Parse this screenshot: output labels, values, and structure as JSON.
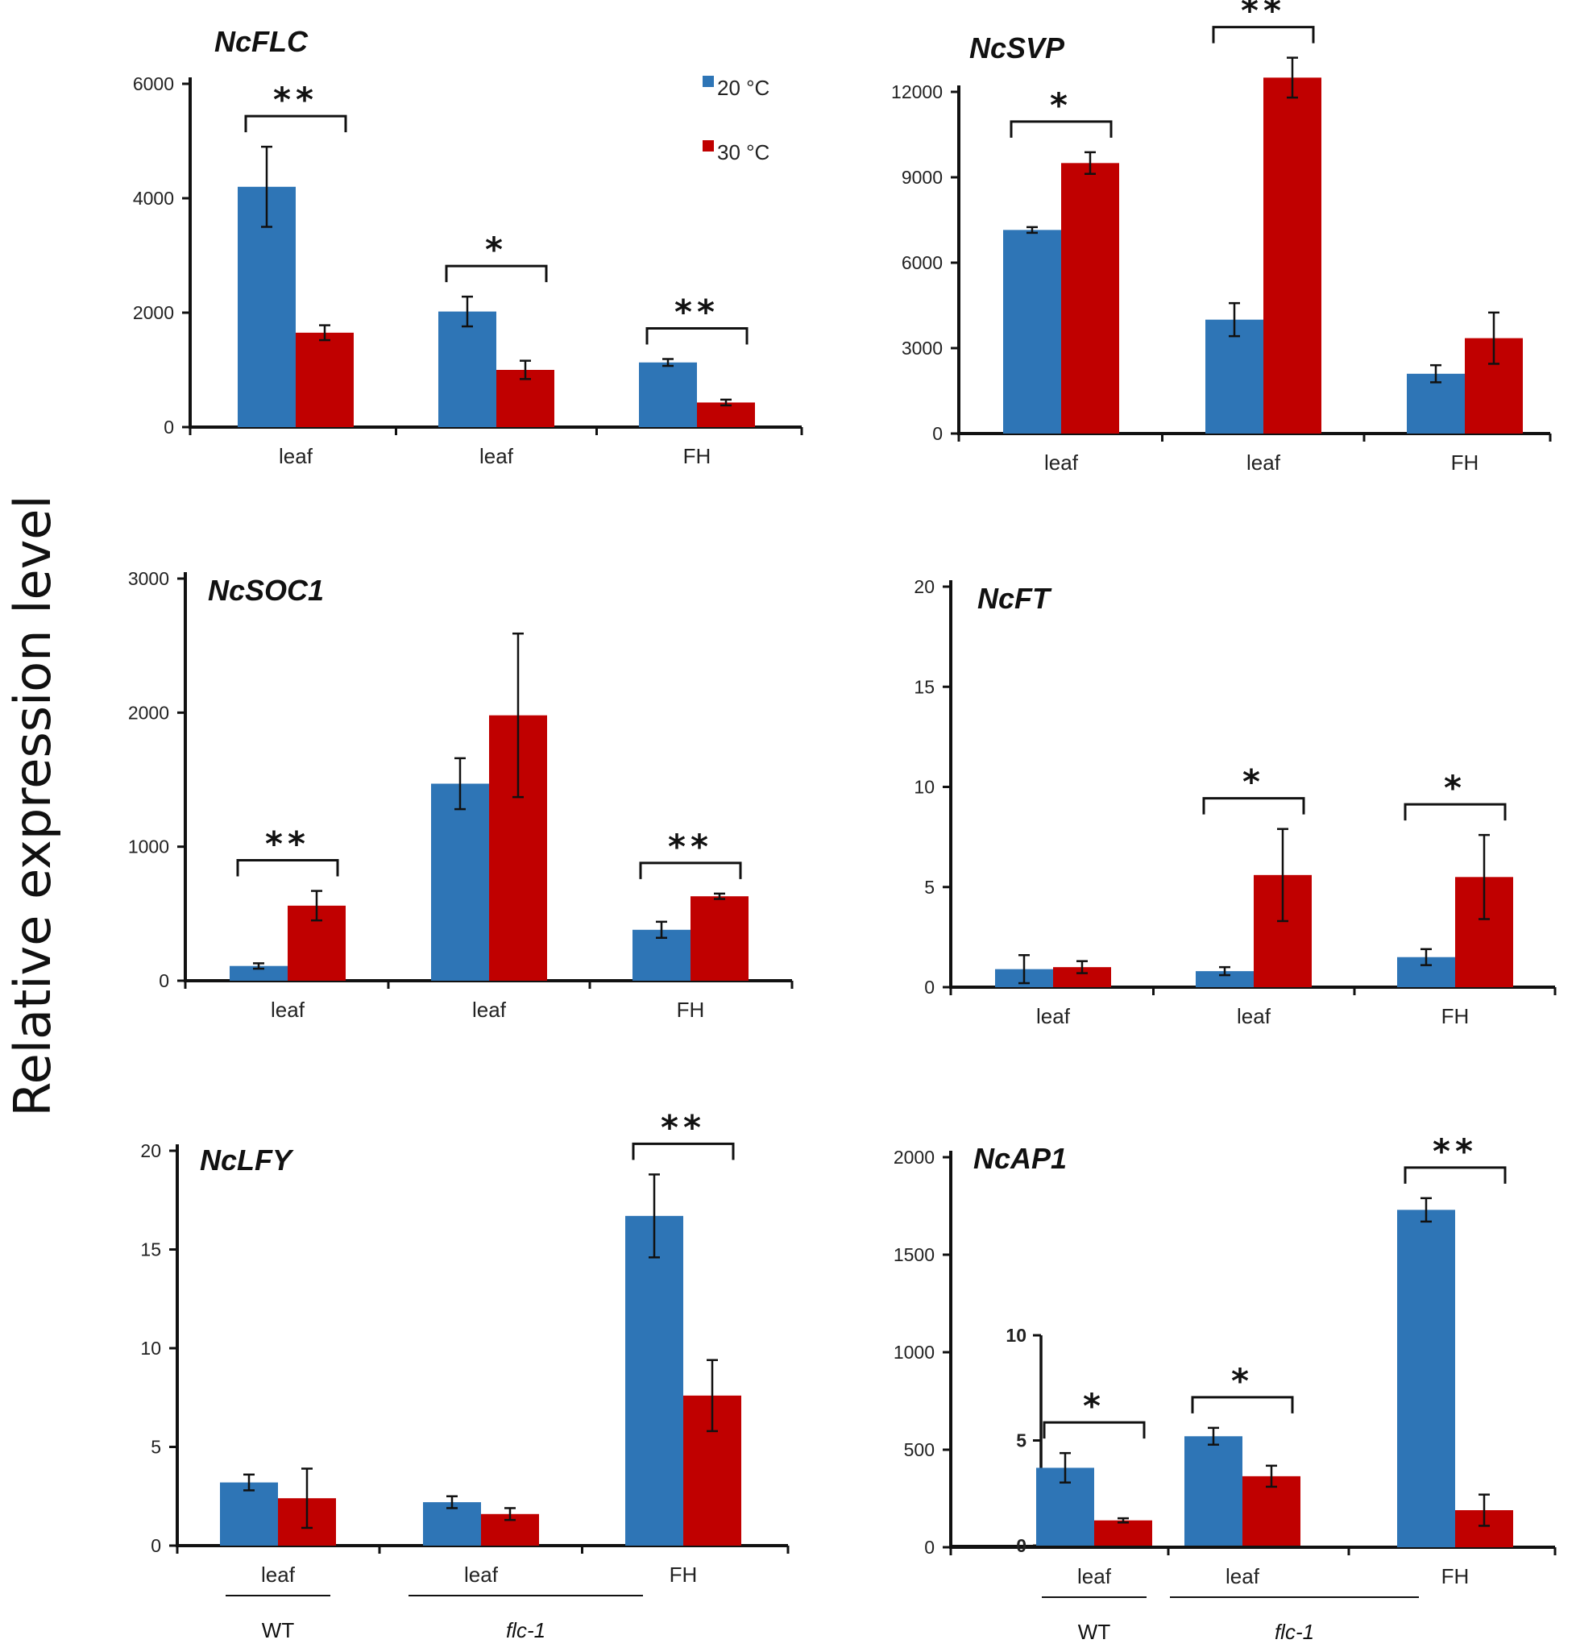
{
  "y_axis_label": "Relative expression level",
  "legend": [
    {
      "label": "20 °C",
      "color": "#2e75b6"
    },
    {
      "label": "30 °C",
      "color": "#c00000"
    }
  ],
  "colors": {
    "series_20": "#2e75b6",
    "series_30": "#c00000",
    "axis": "#111111"
  },
  "groups": [
    {
      "label": "WT",
      "italic": false
    },
    {
      "label": "flc-1",
      "italic": true
    }
  ],
  "chart_data": [
    {
      "type": "bar",
      "title": "NcFLC",
      "categories": [
        "leaf",
        "leaf",
        "FH"
      ],
      "ylim": [
        0,
        6000
      ],
      "yticks": [
        0,
        2000,
        4000,
        6000
      ],
      "series": [
        {
          "name": "20 °C",
          "values": [
            4200,
            2020,
            1130
          ],
          "errors": [
            700,
            260,
            60
          ]
        },
        {
          "name": "30 °C",
          "values": [
            1650,
            1000,
            430
          ],
          "errors": [
            130,
            160,
            50
          ]
        }
      ],
      "significance": [
        {
          "category": 0,
          "label": "**"
        },
        {
          "category": 1,
          "label": "*"
        },
        {
          "category": 2,
          "label": "**"
        }
      ]
    },
    {
      "type": "bar",
      "title": "NcSVP",
      "categories": [
        "leaf",
        "leaf",
        "FH"
      ],
      "ylim": [
        0,
        12000
      ],
      "yticks": [
        0,
        3000,
        6000,
        9000,
        12000
      ],
      "series": [
        {
          "name": "20 °C",
          "values": [
            7150,
            4000,
            2100
          ],
          "errors": [
            100,
            580,
            300
          ]
        },
        {
          "name": "30 °C",
          "values": [
            9500,
            12500,
            3350
          ],
          "errors": [
            380,
            700,
            900
          ]
        }
      ],
      "significance": [
        {
          "category": 0,
          "label": "*"
        },
        {
          "category": 1,
          "label": "**"
        }
      ]
    },
    {
      "type": "bar",
      "title": "NcSOC1",
      "categories": [
        "leaf",
        "leaf",
        "FH"
      ],
      "ylim": [
        0,
        3000
      ],
      "yticks": [
        0,
        1000,
        2000,
        3000
      ],
      "series": [
        {
          "name": "20 °C",
          "values": [
            110,
            1470,
            380
          ],
          "errors": [
            20,
            190,
            60
          ]
        },
        {
          "name": "30 °C",
          "values": [
            560,
            1980,
            630
          ],
          "errors": [
            110,
            610,
            20
          ]
        }
      ],
      "significance": [
        {
          "category": 0,
          "label": "**"
        },
        {
          "category": 2,
          "label": "**"
        }
      ]
    },
    {
      "type": "bar",
      "title": "NcFT",
      "categories": [
        "leaf",
        "leaf",
        "FH"
      ],
      "ylim": [
        0,
        20
      ],
      "yticks": [
        0,
        5,
        10,
        15,
        20
      ],
      "series": [
        {
          "name": "20 °C",
          "values": [
            0.9,
            0.8,
            1.5
          ],
          "errors": [
            0.7,
            0.2,
            0.4
          ]
        },
        {
          "name": "30 °C",
          "values": [
            1.0,
            5.6,
            5.5
          ],
          "errors": [
            0.3,
            2.3,
            2.1
          ]
        }
      ],
      "significance": [
        {
          "category": 1,
          "label": "*"
        },
        {
          "category": 2,
          "label": "*"
        }
      ]
    },
    {
      "type": "bar",
      "title": "NcLFY",
      "categories": [
        "leaf",
        "leaf",
        "FH"
      ],
      "ylim": [
        0,
        20
      ],
      "yticks": [
        0,
        5,
        10,
        15,
        20
      ],
      "groups": [
        {
          "label": "WT",
          "categories": [
            0
          ]
        },
        {
          "label": "flc-1",
          "categories": [
            1,
            2
          ]
        }
      ],
      "series": [
        {
          "name": "20 °C",
          "values": [
            3.2,
            2.2,
            16.7
          ],
          "errors": [
            0.4,
            0.3,
            2.1
          ]
        },
        {
          "name": "30 °C",
          "values": [
            2.4,
            1.6,
            7.6
          ],
          "errors": [
            1.5,
            0.3,
            1.8
          ]
        }
      ],
      "significance": [
        {
          "category": 2,
          "label": "**"
        }
      ]
    },
    {
      "type": "bar",
      "title": "NcAP1",
      "categories": [
        "leaf",
        "leaf",
        "FH"
      ],
      "ylim": [
        0,
        2000
      ],
      "yticks": [
        0,
        500,
        1000,
        1500,
        2000
      ],
      "inset_axis": {
        "ylim": [
          0,
          10
        ],
        "yticks": [
          0,
          5,
          10
        ],
        "applies_to": [
          0,
          1
        ]
      },
      "groups": [
        {
          "label": "WT",
          "categories": [
            0
          ]
        },
        {
          "label": "flc-1",
          "categories": [
            1,
            2
          ]
        }
      ],
      "series": [
        {
          "name": "20 °C",
          "values": [
            3.7,
            5.2,
            1730
          ],
          "errors": [
            0.7,
            0.4,
            60
          ]
        },
        {
          "name": "30 °C",
          "values": [
            1.2,
            3.3,
            190
          ],
          "errors": [
            0.1,
            0.5,
            80
          ]
        }
      ],
      "significance": [
        {
          "category": 0,
          "label": "*"
        },
        {
          "category": 1,
          "label": "*"
        },
        {
          "category": 2,
          "label": "**"
        }
      ]
    }
  ]
}
